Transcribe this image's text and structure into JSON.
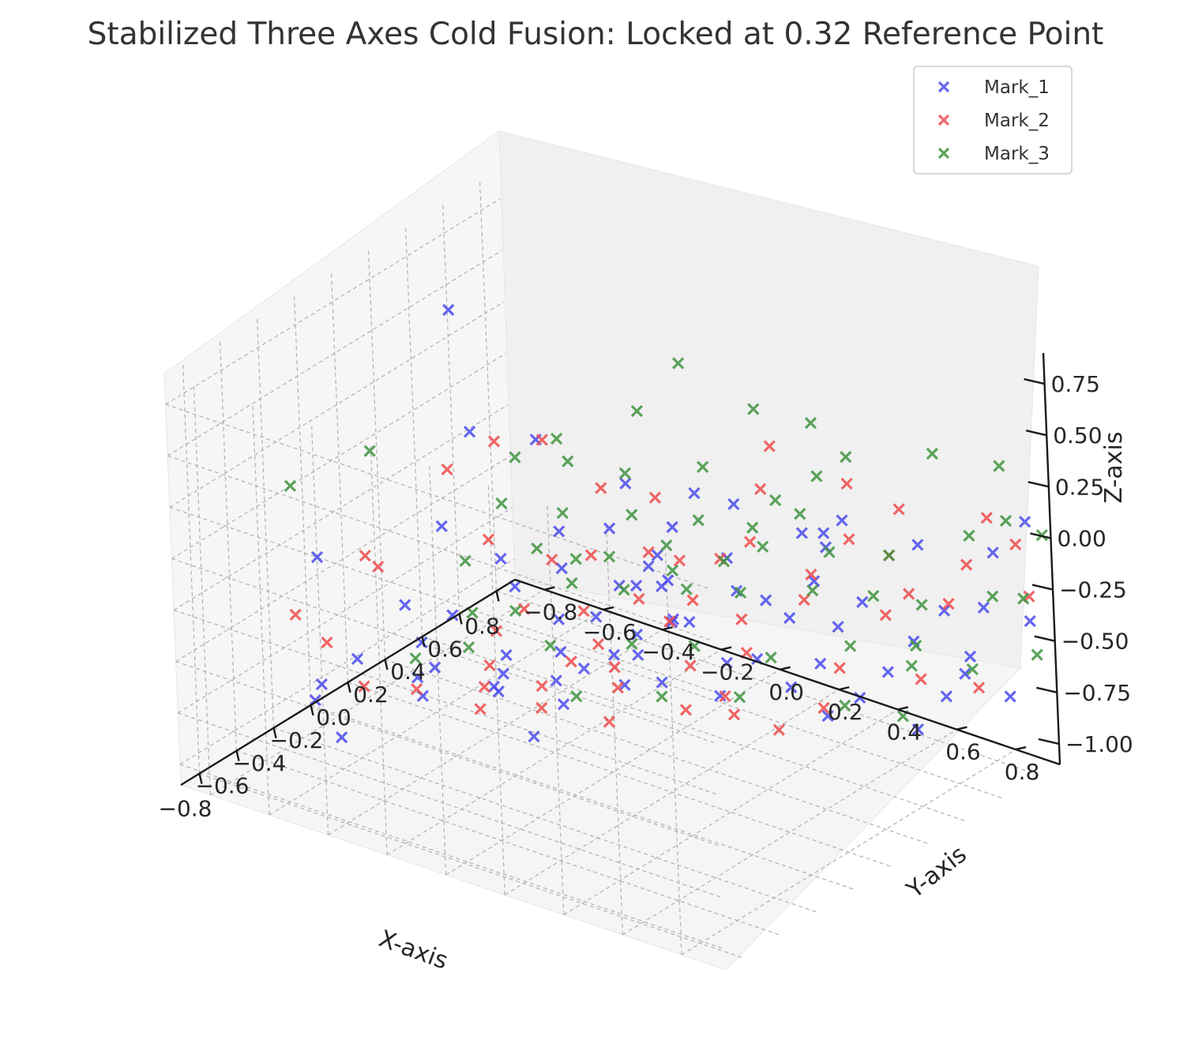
{
  "chart_data": {
    "type": "scatter",
    "projection": "3d",
    "title": "Stabilized Three Axes Cold Fusion: Locked at 0.32 Reference Point",
    "xlabel": "X-axis",
    "ylabel": "Y-axis",
    "zlabel": "Z-axis",
    "xlim": [
      -0.9,
      0.9
    ],
    "ylim": [
      -0.9,
      0.95
    ],
    "zlim": [
      -1.1,
      0.9
    ],
    "x_ticks": [
      "−0.8",
      "−0.6",
      "−0.4",
      "−0.2",
      "0.0",
      "0.2",
      "0.4",
      "0.6",
      "0.8"
    ],
    "y_ticks": [
      "−0.8",
      "−0.6",
      "−0.4",
      "−0.2",
      "0.0",
      "0.2",
      "0.4",
      "0.6",
      "0.8"
    ],
    "z_ticks": [
      "0.75",
      "0.50",
      "0.25",
      "0.00",
      "−0.25",
      "−0.50",
      "−0.75",
      "−1.00"
    ],
    "grid": true,
    "legend_position": "top-right",
    "marker": "x",
    "series": [
      {
        "name": "Mark_1",
        "color": "#4b4bef",
        "points": [
          [
            0.21,
            -0.64,
            0.72
          ],
          [
            -0.36,
            -0.32,
            0.14
          ],
          [
            -0.67,
            -0.55,
            0.05
          ],
          [
            -0.12,
            0.1,
            0.2
          ],
          [
            0.0,
            -0.22,
            0.41
          ],
          [
            0.05,
            0.05,
            0.3
          ],
          [
            -0.3,
            0.42,
            0.0
          ],
          [
            0.18,
            0.12,
            0.05
          ],
          [
            -0.05,
            -0.12,
            0.04
          ],
          [
            -0.22,
            0.25,
            0.05
          ],
          [
            0.11,
            0.35,
            0.05
          ],
          [
            0.37,
            0.21,
            0.1
          ],
          [
            0.28,
            0.58,
            0.12
          ],
          [
            0.47,
            0.45,
            0.02
          ],
          [
            0.55,
            0.72,
            0.05
          ],
          [
            0.6,
            0.43,
            0.0
          ],
          [
            0.73,
            0.86,
            -0.02
          ],
          [
            -0.6,
            -0.3,
            -0.1
          ],
          [
            -0.27,
            -0.18,
            0.0
          ],
          [
            -0.15,
            -0.05,
            -0.05
          ],
          [
            -0.08,
            0.1,
            -0.1
          ],
          [
            0.02,
            0.18,
            -0.12
          ],
          [
            0.1,
            0.15,
            -0.15
          ],
          [
            0.2,
            0.02,
            -0.2
          ],
          [
            0.23,
            0.3,
            -0.2
          ],
          [
            0.29,
            0.36,
            -0.25
          ],
          [
            0.41,
            0.45,
            -0.18
          ],
          [
            0.43,
            0.6,
            -0.22
          ],
          [
            0.63,
            0.75,
            -0.3
          ],
          [
            0.7,
            0.84,
            -0.28
          ],
          [
            -0.46,
            -0.05,
            -0.3
          ],
          [
            -0.55,
            -0.28,
            -0.3
          ],
          [
            -0.28,
            0.02,
            -0.35
          ],
          [
            -0.1,
            -0.1,
            -0.35
          ],
          [
            0.02,
            -0.05,
            -0.38
          ],
          [
            0.12,
            0.15,
            -0.35
          ],
          [
            0.25,
            0.12,
            -0.45
          ],
          [
            0.35,
            0.4,
            -0.35
          ],
          [
            0.45,
            0.5,
            -0.4
          ],
          [
            0.57,
            0.68,
            -0.45
          ],
          [
            0.65,
            0.82,
            -0.5
          ],
          [
            0.85,
            0.9,
            -0.4
          ],
          [
            -0.48,
            -0.55,
            -0.55
          ],
          [
            -0.38,
            -0.35,
            -0.55
          ],
          [
            -0.25,
            -0.2,
            -0.58
          ],
          [
            -0.1,
            -0.02,
            -0.55
          ],
          [
            0.0,
            0.02,
            -0.52
          ],
          [
            0.08,
            0.05,
            -0.55
          ],
          [
            0.24,
            0.25,
            -0.58
          ],
          [
            0.38,
            0.48,
            -0.55
          ],
          [
            0.52,
            0.62,
            -0.6
          ],
          [
            0.68,
            0.78,
            -0.62
          ],
          [
            0.73,
            0.9,
            -0.7
          ],
          [
            -0.52,
            -0.65,
            -0.7
          ],
          [
            -0.32,
            -0.45,
            -0.68
          ],
          [
            -0.18,
            -0.28,
            -0.72
          ],
          [
            -0.05,
            -0.15,
            -0.7
          ],
          [
            0.08,
            0.0,
            -0.72
          ],
          [
            0.2,
            0.05,
            -0.75
          ],
          [
            0.42,
            0.35,
            -0.75
          ],
          [
            0.55,
            0.5,
            -0.8
          ],
          [
            0.7,
            0.7,
            -0.78
          ],
          [
            -0.45,
            -0.72,
            -0.85
          ],
          [
            -0.22,
            -0.5,
            -0.85
          ],
          [
            -0.05,
            -0.35,
            -0.85
          ],
          [
            0.06,
            -0.2,
            -0.9
          ],
          [
            0.35,
            0.15,
            -0.85
          ],
          [
            0.5,
            0.42,
            -0.9
          ],
          [
            0.62,
            0.65,
            -0.92
          ],
          [
            -0.38,
            -0.68,
            -1.05
          ],
          [
            0.05,
            -0.3,
            -1.1
          ],
          [
            0.92,
            0.85,
            0.02
          ],
          [
            -0.3,
            -0.25,
            0.6
          ],
          [
            0.05,
            0.15,
            0.0
          ],
          [
            0.15,
            0.22,
            0.28
          ],
          [
            -0.4,
            -0.05,
            0.0
          ],
          [
            0.28,
            0.5,
            0.15
          ],
          [
            -0.15,
            0.2,
            -0.25
          ],
          [
            0.4,
            0.25,
            -0.65
          ],
          [
            -0.2,
            -0.4,
            -0.42
          ]
        ]
      },
      {
        "name": "Mark_2",
        "color": "#ef4b4b",
        "points": [
          [
            -0.75,
            -0.58,
            -0.2
          ],
          [
            -0.57,
            -0.45,
            0.05
          ],
          [
            -0.55,
            -0.42,
            0.0
          ],
          [
            -0.25,
            -0.2,
            0.55
          ],
          [
            -0.15,
            -0.1,
            0.55
          ],
          [
            -0.35,
            -0.3,
            0.42
          ],
          [
            -0.08,
            0.05,
            0.35
          ],
          [
            0.05,
            0.15,
            0.28
          ],
          [
            0.3,
            0.35,
            0.28
          ],
          [
            0.45,
            0.55,
            0.32
          ],
          [
            0.52,
            0.68,
            0.22
          ],
          [
            0.72,
            0.85,
            0.15
          ],
          [
            -0.2,
            -0.05,
            0.02
          ],
          [
            -0.1,
            0.02,
            0.02
          ],
          [
            0.05,
            0.12,
            0.0
          ],
          [
            0.12,
            0.18,
            -0.05
          ],
          [
            0.28,
            0.32,
            0.02
          ],
          [
            0.45,
            0.55,
            0.05
          ],
          [
            0.55,
            0.62,
            -0.05
          ],
          [
            0.68,
            0.8,
            -0.08
          ],
          [
            0.82,
            0.88,
            -0.02
          ],
          [
            -0.4,
            -0.12,
            -0.25
          ],
          [
            -0.28,
            -0.1,
            -0.2
          ],
          [
            -0.12,
            0.0,
            -0.25
          ],
          [
            0.02,
            0.1,
            -0.22
          ],
          [
            0.15,
            0.2,
            -0.25
          ],
          [
            0.25,
            0.3,
            -0.35
          ],
          [
            0.4,
            0.42,
            -0.28
          ],
          [
            0.55,
            0.6,
            -0.35
          ],
          [
            0.7,
            0.72,
            -0.32
          ],
          [
            0.85,
            0.9,
            -0.28
          ],
          [
            -0.56,
            -0.6,
            -0.45
          ],
          [
            -0.48,
            -0.35,
            -0.6
          ],
          [
            -0.32,
            -0.2,
            -0.5
          ],
          [
            -0.12,
            -0.05,
            -0.52
          ],
          [
            0.0,
            0.02,
            -0.58
          ],
          [
            0.2,
            0.15,
            -0.62
          ],
          [
            0.3,
            0.28,
            -0.55
          ],
          [
            0.45,
            0.5,
            -0.6
          ],
          [
            0.6,
            0.68,
            -0.65
          ],
          [
            0.72,
            0.8,
            -0.7
          ],
          [
            -0.45,
            -0.55,
            -0.7
          ],
          [
            -0.2,
            -0.3,
            -0.72
          ],
          [
            -0.05,
            -0.2,
            -0.75
          ],
          [
            0.12,
            -0.05,
            -0.78
          ],
          [
            0.3,
            0.2,
            -0.8
          ],
          [
            0.48,
            0.42,
            -0.85
          ],
          [
            -0.15,
            -0.35,
            -0.88
          ],
          [
            0.02,
            -0.25,
            -0.92
          ],
          [
            0.32,
            0.05,
            -0.95
          ],
          [
            0.42,
            0.15,
            -0.98
          ],
          [
            0.22,
            -0.15,
            -1.05
          ],
          [
            0.5,
            0.25,
            -1.05
          ],
          [
            0.6,
            0.65,
            -0.25
          ],
          [
            0.35,
            0.48,
            -0.1
          ],
          [
            -0.05,
            0.0,
            -0.45
          ],
          [
            0.15,
            0.3,
            0.0
          ],
          [
            0.25,
            0.42,
            0.55
          ],
          [
            -0.3,
            -0.2,
            0.1
          ],
          [
            0.1,
            0.15,
            -0.35
          ]
        ]
      },
      {
        "name": "Mark_3",
        "color": "#3f943f",
        "points": [
          [
            -0.6,
            -0.4,
            0.6
          ],
          [
            -0.72,
            -0.6,
            0.4
          ],
          [
            -0.15,
            -0.05,
            0.58
          ],
          [
            0.08,
            0.08,
            0.65
          ],
          [
            0.28,
            0.35,
            0.68
          ],
          [
            0.38,
            0.48,
            0.62
          ],
          [
            -0.22,
            -0.15,
            0.48
          ],
          [
            -0.05,
            -0.08,
            0.4
          ],
          [
            0.05,
            0.05,
            0.35
          ],
          [
            0.2,
            0.22,
            0.38
          ],
          [
            0.45,
            0.55,
            0.45
          ],
          [
            0.6,
            0.75,
            0.48
          ],
          [
            0.75,
            0.88,
            0.4
          ],
          [
            -0.18,
            -0.02,
            0.25
          ],
          [
            0.0,
            0.1,
            0.2
          ],
          [
            0.12,
            0.25,
            0.18
          ],
          [
            0.25,
            0.35,
            0.12
          ],
          [
            0.35,
            0.45,
            0.18
          ],
          [
            -0.35,
            -0.25,
            0.0
          ],
          [
            -0.2,
            -0.1,
            0.05
          ],
          [
            -0.05,
            0.05,
            0.0
          ],
          [
            0.1,
            0.15,
            0.02
          ],
          [
            0.2,
            0.28,
            -0.05
          ],
          [
            0.3,
            0.35,
            0.0
          ],
          [
            0.42,
            0.5,
            -0.02
          ],
          [
            0.55,
            0.62,
            -0.05
          ],
          [
            0.7,
            0.8,
            0.05
          ],
          [
            0.82,
            0.85,
            0.08
          ],
          [
            0.9,
            0.92,
            0.0
          ],
          [
            -0.4,
            -0.2,
            -0.2
          ],
          [
            -0.25,
            -0.15,
            -0.25
          ],
          [
            -0.1,
            -0.05,
            -0.15
          ],
          [
            0.02,
            0.05,
            -0.2
          ],
          [
            0.12,
            0.2,
            -0.18
          ],
          [
            0.25,
            0.3,
            -0.22
          ],
          [
            0.4,
            0.45,
            -0.22
          ],
          [
            0.52,
            0.58,
            -0.25
          ],
          [
            0.62,
            0.68,
            -0.3
          ],
          [
            0.78,
            0.82,
            -0.28
          ],
          [
            0.85,
            0.88,
            -0.3
          ],
          [
            -0.48,
            -0.35,
            -0.45
          ],
          [
            -0.35,
            -0.25,
            -0.42
          ],
          [
            -0.15,
            -0.1,
            -0.45
          ],
          [
            0.05,
            0.05,
            -0.48
          ],
          [
            0.18,
            0.18,
            -0.5
          ],
          [
            0.32,
            0.35,
            -0.55
          ],
          [
            0.48,
            0.52,
            -0.5
          ],
          [
            0.6,
            0.65,
            -0.6
          ],
          [
            0.72,
            0.78,
            -0.62
          ],
          [
            0.88,
            0.9,
            -0.58
          ],
          [
            -0.1,
            -0.05,
            -0.7
          ],
          [
            0.12,
            0.1,
            -0.75
          ],
          [
            0.3,
            0.25,
            -0.78
          ],
          [
            0.5,
            0.48,
            -0.82
          ],
          [
            0.62,
            0.6,
            -0.88
          ],
          [
            0.2,
            0.15,
            0.85
          ],
          [
            -0.15,
            0.0,
            0.02
          ],
          [
            0.3,
            0.4,
            0.25
          ],
          [
            -0.3,
            -0.15,
            0.3
          ],
          [
            0.55,
            0.7,
            -0.45
          ],
          [
            0.05,
            0.2,
            -0.05
          ],
          [
            0.4,
            0.48,
            0.35
          ]
        ]
      }
    ]
  }
}
